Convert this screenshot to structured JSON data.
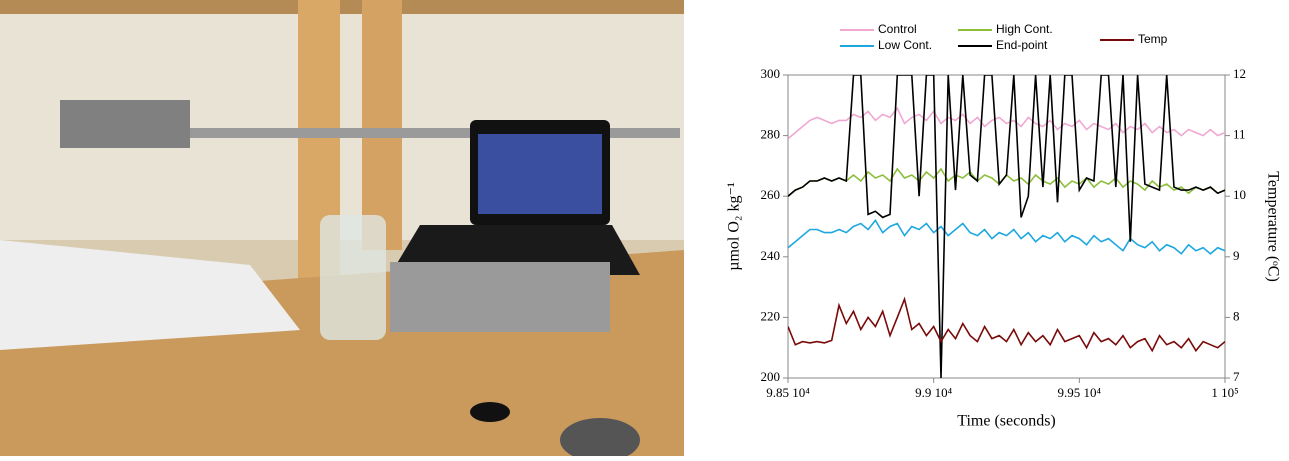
{
  "chart_data": {
    "type": "line",
    "xlabel": "Time (seconds)",
    "ylabel": "µmol O₂ kg⁻¹",
    "y2label": "Temperature (ᵒC)",
    "xlim": [
      98500,
      100000
    ],
    "xticks": [
      {
        "value": 98500,
        "label": "9.85 10⁴"
      },
      {
        "value": 99000,
        "label": "9.9 10⁴"
      },
      {
        "value": 99500,
        "label": "9.95 10⁴"
      },
      {
        "value": 100000,
        "label": "1 10⁵"
      }
    ],
    "ylim": [
      200,
      300
    ],
    "yticks": [
      200,
      220,
      240,
      260,
      280,
      300
    ],
    "y2lim": [
      7,
      12
    ],
    "y2ticks": [
      7,
      8,
      9,
      10,
      11,
      12
    ],
    "x": [
      98500,
      98525,
      98550,
      98575,
      98600,
      98625,
      98650,
      98675,
      98700,
      98725,
      98750,
      98775,
      98800,
      98825,
      98850,
      98875,
      98900,
      98925,
      98950,
      98975,
      99000,
      99025,
      99050,
      99075,
      99100,
      99125,
      99150,
      99175,
      99200,
      99225,
      99250,
      99275,
      99300,
      99325,
      99350,
      99375,
      99400,
      99425,
      99450,
      99475,
      99500,
      99525,
      99550,
      99575,
      99600,
      99625,
      99650,
      99675,
      99700,
      99725,
      99750,
      99775,
      99800,
      99825,
      99850,
      99875,
      99900,
      99925,
      99950,
      99975,
      100000
    ],
    "series": [
      {
        "name": "Control",
        "color": "#f0a8d2",
        "values": [
          279,
          281,
          283,
          285,
          286,
          285,
          284,
          285,
          285,
          287,
          286,
          288,
          285,
          287,
          286,
          289,
          284,
          286,
          287,
          285,
          288,
          284,
          286,
          285,
          287,
          284,
          286,
          283,
          285,
          286,
          284,
          285,
          283,
          286,
          284,
          283,
          285,
          282,
          284,
          283,
          285,
          282,
          284,
          283,
          282,
          284,
          281,
          283,
          282,
          284,
          281,
          283,
          281,
          282,
          280,
          282,
          281,
          280,
          282,
          280,
          281
        ]
      },
      {
        "name": "Low Cont.",
        "color": "#1ea8e0",
        "values": [
          243,
          245,
          247,
          249,
          249,
          248,
          248,
          249,
          248,
          250,
          251,
          249,
          252,
          248,
          250,
          251,
          247,
          250,
          249,
          251,
          248,
          250,
          247,
          249,
          251,
          248,
          247,
          249,
          246,
          248,
          247,
          249,
          246,
          248,
          245,
          247,
          246,
          248,
          245,
          247,
          246,
          244,
          247,
          245,
          246,
          244,
          242,
          246,
          244,
          243,
          245,
          242,
          244,
          243,
          241,
          244,
          242,
          243,
          241,
          243,
          242
        ]
      },
      {
        "name": "High Cont.",
        "color": "#8cbe3c",
        "values": [
          260,
          262,
          263,
          265,
          265,
          266,
          265,
          266,
          265,
          267,
          265,
          268,
          266,
          267,
          265,
          269,
          266,
          267,
          265,
          268,
          266,
          269,
          265,
          267,
          266,
          268,
          265,
          267,
          266,
          264,
          267,
          265,
          266,
          264,
          267,
          265,
          264,
          266,
          263,
          265,
          264,
          266,
          263,
          265,
          264,
          266,
          263,
          265,
          264,
          262,
          265,
          263,
          264,
          262,
          263,
          261,
          263,
          262,
          263,
          261,
          262
        ]
      },
      {
        "name": "End-point",
        "color": "#000000",
        "values": [
          260,
          262,
          263,
          265,
          265,
          266,
          265,
          266,
          265,
          300,
          300,
          254,
          255,
          253,
          254,
          300,
          300,
          300,
          260,
          300,
          300,
          200,
          300,
          262,
          300,
          267,
          265,
          300,
          300,
          264,
          267,
          300,
          253,
          260,
          300,
          263,
          300,
          258,
          300,
          300,
          262,
          266,
          265,
          300,
          300,
          263,
          300,
          245,
          300,
          264,
          263,
          262,
          300,
          263,
          262,
          262,
          263,
          262,
          263,
          261,
          262
        ]
      },
      {
        "name": "Temp",
        "color": "#7a0a0a",
        "axis": "y2",
        "values": [
          7.85,
          7.55,
          7.6,
          7.58,
          7.6,
          7.58,
          7.62,
          8.2,
          7.9,
          8.1,
          7.8,
          8.0,
          7.85,
          8.1,
          7.7,
          8.0,
          8.3,
          7.8,
          7.9,
          7.7,
          7.85,
          7.6,
          7.8,
          7.65,
          7.9,
          7.7,
          7.6,
          7.85,
          7.65,
          7.7,
          7.6,
          7.8,
          7.55,
          7.75,
          7.6,
          7.7,
          7.55,
          7.8,
          7.6,
          7.65,
          7.7,
          7.5,
          7.75,
          7.6,
          7.65,
          7.55,
          7.7,
          7.5,
          7.6,
          7.65,
          7.45,
          7.7,
          7.55,
          7.6,
          7.5,
          7.65,
          7.45,
          7.6,
          7.55,
          7.5,
          7.6
        ]
      }
    ]
  }
}
